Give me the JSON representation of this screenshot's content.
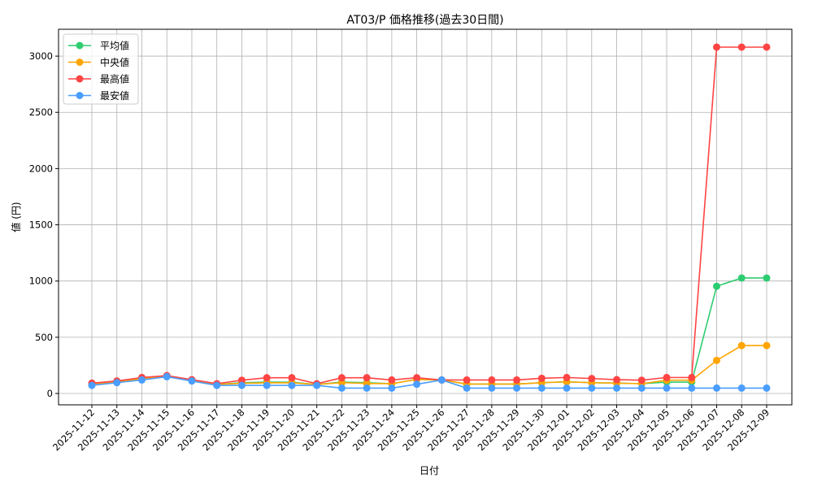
{
  "chart_data": {
    "type": "line",
    "title": "AT03/P 価格推移(過去30日間)",
    "xlabel": "日付",
    "ylabel": "値 (円)",
    "ylim": [
      -101,
      3239
    ],
    "yticks": [
      0,
      500,
      1000,
      1500,
      2000,
      2500,
      3000
    ],
    "grid": true,
    "legend_placement": "top-left",
    "categories": [
      "2025-11-12",
      "2025-11-13",
      "2025-11-14",
      "2025-11-15",
      "2025-11-16",
      "2025-11-17",
      "2025-11-18",
      "2025-11-19",
      "2025-11-20",
      "2025-11-21",
      "2025-11-22",
      "2025-11-23",
      "2025-11-24",
      "2025-11-25",
      "2025-11-26",
      "2025-11-27",
      "2025-11-28",
      "2025-11-29",
      "2025-11-30",
      "2025-12-01",
      "2025-12-02",
      "2025-12-03",
      "2025-12-04",
      "2025-12-05",
      "2025-12-06",
      "2025-12-07",
      "2025-12-08",
      "2025-12-09"
    ],
    "series": [
      {
        "name": "平均値",
        "color": "#2ecc71",
        "values": [
          82,
          103,
          131,
          154,
          117,
          80,
          96,
          101,
          100,
          80,
          101,
          96,
          87,
          125,
          120,
          84,
          84,
          84,
          96,
          104,
          96,
          92,
          87,
          101,
          101,
          954,
          1027,
          1027
        ]
      },
      {
        "name": "中央値",
        "color": "#ffa500",
        "values": [
          82,
          103,
          131,
          154,
          117,
          80,
          90,
          95,
          95,
          80,
          96,
          89,
          87,
          125,
          120,
          84,
          84,
          84,
          96,
          104,
          96,
          92,
          87,
          118,
          118,
          294,
          426,
          426
        ]
      },
      {
        "name": "最高値",
        "color": "#ff4444",
        "values": [
          92,
          111,
          142,
          159,
          123,
          87,
          118,
          140,
          140,
          87,
          140,
          140,
          120,
          140,
          120,
          120,
          120,
          120,
          135,
          142,
          133,
          123,
          118,
          142,
          142,
          3080,
          3080,
          3080
        ]
      },
      {
        "name": "最安値",
        "color": "#4a9eff",
        "values": [
          72,
          96,
          120,
          149,
          111,
          72,
          72,
          72,
          72,
          72,
          48,
          48,
          48,
          82,
          120,
          48,
          48,
          48,
          48,
          48,
          48,
          48,
          48,
          48,
          48,
          48,
          48,
          48
        ]
      }
    ]
  }
}
